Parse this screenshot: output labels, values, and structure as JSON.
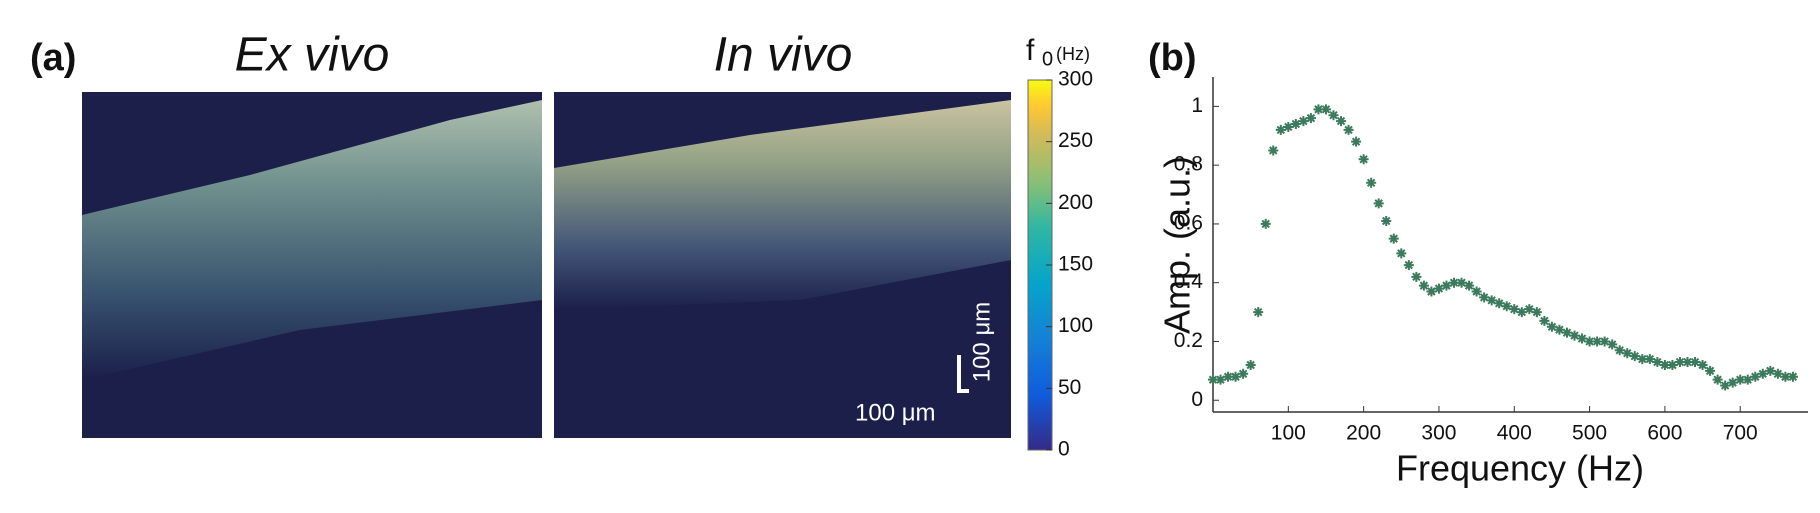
{
  "panel_a": {
    "label": "(a)",
    "titles": [
      "Ex vivo",
      "In vivo"
    ],
    "colorbar": {
      "symbol": "f",
      "subscript": "0",
      "unit": "(Hz)",
      "lim": [
        0,
        300
      ],
      "ticks": [
        0,
        50,
        100,
        150,
        200,
        250,
        300
      ]
    },
    "scale_bar": {
      "horizontal": "100 μm",
      "vertical": "100 μm"
    }
  },
  "chart_data": {
    "type": "scatter",
    "label": "(b)",
    "x_label": "Frequency (Hz)",
    "y_label": "Amp. (a.u.)",
    "xlim": [
      0,
      790
    ],
    "ylim": [
      -0.04,
      1.1
    ],
    "xticks": [
      100,
      200,
      300,
      400,
      500,
      600,
      700
    ],
    "yticks": [
      0,
      0.2,
      0.4,
      0.6,
      0.8,
      1
    ],
    "color": "#3b7a5c",
    "x": [
      0,
      10,
      20,
      30,
      40,
      50,
      60,
      70,
      80,
      90,
      100,
      110,
      120,
      130,
      140,
      150,
      160,
      170,
      180,
      190,
      200,
      210,
      220,
      230,
      240,
      250,
      260,
      270,
      280,
      290,
      300,
      310,
      320,
      330,
      340,
      350,
      360,
      370,
      380,
      390,
      400,
      410,
      420,
      430,
      440,
      450,
      460,
      470,
      480,
      490,
      500,
      510,
      520,
      530,
      540,
      550,
      560,
      570,
      580,
      590,
      600,
      610,
      620,
      630,
      640,
      650,
      660,
      670,
      680,
      690,
      700,
      710,
      720,
      730,
      740,
      750,
      760,
      770
    ],
    "values": [
      0.07,
      0.07,
      0.08,
      0.08,
      0.09,
      0.12,
      0.3,
      0.6,
      0.85,
      0.92,
      0.93,
      0.94,
      0.95,
      0.96,
      0.99,
      0.99,
      0.97,
      0.95,
      0.92,
      0.88,
      0.82,
      0.74,
      0.67,
      0.61,
      0.55,
      0.5,
      0.46,
      0.42,
      0.39,
      0.37,
      0.38,
      0.39,
      0.4,
      0.4,
      0.39,
      0.37,
      0.35,
      0.34,
      0.33,
      0.32,
      0.31,
      0.3,
      0.31,
      0.3,
      0.27,
      0.25,
      0.24,
      0.23,
      0.22,
      0.21,
      0.2,
      0.2,
      0.2,
      0.19,
      0.17,
      0.16,
      0.15,
      0.14,
      0.14,
      0.13,
      0.12,
      0.12,
      0.13,
      0.13,
      0.13,
      0.12,
      0.1,
      0.07,
      0.05,
      0.06,
      0.07,
      0.07,
      0.08,
      0.09,
      0.1,
      0.09,
      0.08,
      0.08
    ]
  }
}
